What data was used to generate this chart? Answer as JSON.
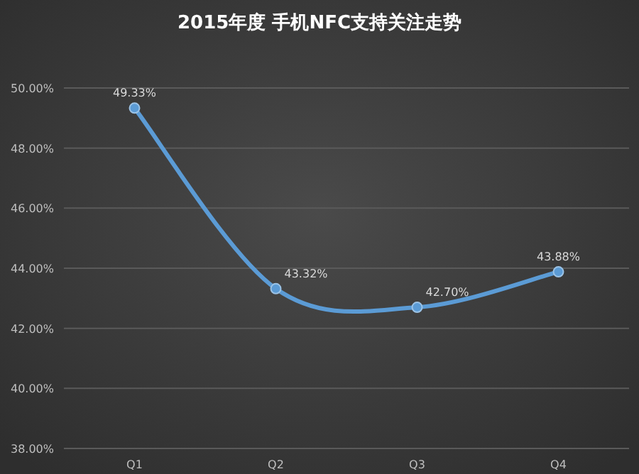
{
  "chart_data": {
    "type": "line",
    "title": "2015年度 手机NFC支持关注走势",
    "categories": [
      "Q1",
      "Q2",
      "Q3",
      "Q4"
    ],
    "values": [
      49.33,
      43.32,
      42.7,
      43.88
    ],
    "value_labels": [
      "49.33%",
      "43.32%",
      "42.70%",
      "43.88%"
    ],
    "color": "#5b9bd5",
    "marker": "circle",
    "grid": "y",
    "ylim": [
      38,
      50
    ],
    "yticks": [
      {
        "value": 38,
        "label": "38.00%"
      },
      {
        "value": 40,
        "label": "40.00%"
      },
      {
        "value": 42,
        "label": "42.00%"
      },
      {
        "value": 44,
        "label": "44.00%"
      },
      {
        "value": 46,
        "label": "46.00%"
      },
      {
        "value": 48,
        "label": "48.00%"
      },
      {
        "value": 50,
        "label": "50.00%"
      }
    ]
  }
}
